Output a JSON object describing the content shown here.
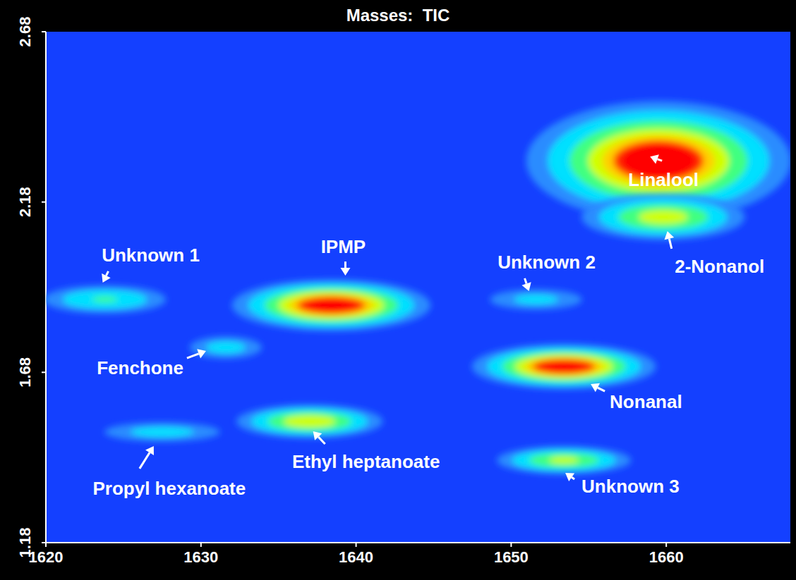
{
  "chart_data": {
    "type": "heatmap",
    "title": "Masses:  TIC",
    "xlim": [
      1620,
      1668
    ],
    "xticks": [
      1620,
      1630,
      1640,
      1650,
      1660
    ],
    "ylim": [
      1.18,
      2.68
    ],
    "yticks": [
      1.18,
      1.68,
      2.18,
      2.68
    ],
    "grid": false,
    "peaks": [
      {
        "label": "Unknown 1",
        "x": 1623.8,
        "y": 1.894,
        "intensity": 0.3,
        "x_width": 2.2,
        "y_width": 0.023
      },
      {
        "label": "Fenchone",
        "x": 1631.6,
        "y": 1.753,
        "intensity": 0.2,
        "x_width": 1.5,
        "y_width": 0.021
      },
      {
        "label": "IPMP",
        "x": 1638.4,
        "y": 1.877,
        "intensity": 1.0,
        "x_width": 2.7,
        "y_width": 0.032
      },
      {
        "label": "Ethyl heptanoate",
        "x": 1637.0,
        "y": 1.536,
        "intensity": 0.6,
        "x_width": 2.2,
        "y_width": 0.023
      },
      {
        "label": "Propyl hexanoate",
        "x": 1627.5,
        "y": 1.505,
        "intensity": 0.2,
        "x_width": 2.4,
        "y_width": 0.018
      },
      {
        "label": "Unknown 2",
        "x": 1651.6,
        "y": 1.894,
        "intensity": 0.18,
        "x_width": 2.0,
        "y_width": 0.02
      },
      {
        "label": "Nonanal",
        "x": 1653.4,
        "y": 1.697,
        "intensity": 1.0,
        "x_width": 2.5,
        "y_width": 0.028
      },
      {
        "label": "Unknown 3",
        "x": 1653.4,
        "y": 1.422,
        "intensity": 0.5,
        "x_width": 2.1,
        "y_width": 0.02
      },
      {
        "label": "Linalool",
        "x": 1659.5,
        "y": 2.301,
        "intensity": 1.0,
        "x_width": 3.6,
        "y_width": 0.074
      },
      {
        "label": "2-Nonanol",
        "x": 1659.8,
        "y": 2.136,
        "intensity": 0.55,
        "x_width": 2.5,
        "y_width": 0.032
      }
    ]
  }
}
